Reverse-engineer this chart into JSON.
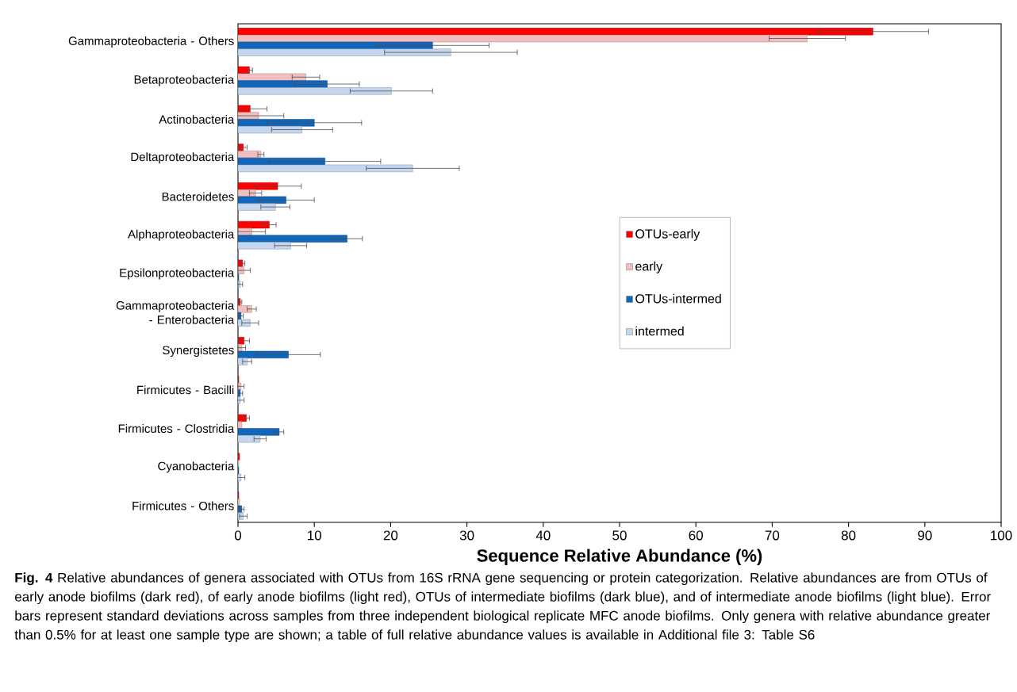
{
  "chart_data": {
    "type": "bar",
    "orientation": "horizontal",
    "categories": [
      "Gammaproteobacteria - Others",
      "Betaproteobacteria",
      "Actinobacteria",
      "Deltaproteobacteria",
      "Bacteroidetes",
      "Alphaproteobacteria",
      "Epsilonproteobacteria",
      "Gammaproteobacteria - Enterobacteria",
      "Synergistetes",
      "Firmicutes - Bacilli",
      "Firmicutes - Clostridia",
      "Cyanobacteria",
      "Firmicutes - Others"
    ],
    "series": [
      {
        "name": "OTUs-early",
        "color": "#ff0000",
        "values": [
          83.2,
          1.5,
          1.6,
          0.7,
          5.2,
          4.1,
          0.6,
          0.3,
          0.8,
          0.1,
          1.1,
          0.2,
          0.1
        ],
        "errors": [
          7.3,
          0.4,
          2.2,
          0.5,
          3.1,
          0.9,
          0.3,
          0.2,
          0.7,
          null,
          0.4,
          null,
          null
        ]
      },
      {
        "name": "early",
        "color": "#f2bfbf",
        "values": [
          74.6,
          8.9,
          2.7,
          3.0,
          2.3,
          1.8,
          0.8,
          1.8,
          0.5,
          0.4,
          0.5,
          0.1,
          0.2
        ],
        "errors": [
          5.0,
          1.8,
          3.3,
          0.4,
          0.8,
          1.8,
          0.8,
          0.6,
          0.5,
          0.4,
          null,
          null,
          null
        ]
      },
      {
        "name": "OTUs-intermed",
        "color": "#1166bb",
        "values": [
          25.5,
          11.7,
          10.0,
          11.4,
          6.3,
          14.3,
          0.1,
          0.4,
          6.6,
          0.3,
          5.4,
          0.1,
          0.5
        ],
        "errors": [
          7.4,
          4.2,
          6.2,
          7.3,
          3.7,
          2.0,
          null,
          0.3,
          4.2,
          0.3,
          0.6,
          null,
          0.3
        ]
      },
      {
        "name": "intermed",
        "color": "#c5d7ee",
        "values": [
          27.9,
          20.1,
          8.4,
          22.9,
          4.9,
          6.9,
          0.3,
          1.6,
          1.2,
          0.3,
          2.9,
          0.4,
          0.7
        ],
        "errors": [
          8.7,
          5.4,
          4.0,
          6.1,
          1.9,
          2.1,
          0.3,
          1.1,
          0.6,
          0.5,
          0.8,
          0.5,
          0.5
        ]
      }
    ],
    "xlim": [
      0,
      100
    ],
    "xticks": [
      0,
      10,
      20,
      30,
      40,
      50,
      60,
      70,
      80,
      90,
      100
    ],
    "xlabel": "Sequence Relative Abundance (%)",
    "legend": "right",
    "annotations": [
      "**Fig. 4** Relative abundances of genera associated with OTUs from 16S rRNA gene sequencing or protein categorization. Relative abundances are from OTUs of early anode biofilms (dark red), of early anode biofilms (light red), OTUs of intermediate biofilms (dark blue), and of intermediate anode biofilms (light blue). Error bars represent standard deviations across samples from three independent biological replicate MFC anode biofilms. Only genera with relative abundance greater than 0.5% for at least one sample type are shown; a table of full relative abundance values is available in Additional file 3: Table S6"
    ]
  }
}
